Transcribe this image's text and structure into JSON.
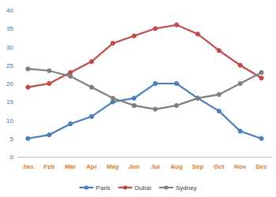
{
  "chart_data": {
    "type": "line",
    "categories": [
      "Jan",
      "Feb",
      "Mar",
      "Apr",
      "May",
      "Jun",
      "Jul",
      "Aug",
      "Sep",
      "Oct",
      "Nov",
      "Dec"
    ],
    "series": [
      {
        "name": "Paris",
        "color": "#4a7ebb",
        "marker": "circle",
        "values": [
          5,
          6,
          9,
          11,
          15,
          16,
          20,
          20,
          16,
          12.5,
          7,
          5
        ]
      },
      {
        "name": "Dubai",
        "color": "#be4b48",
        "marker": "circle",
        "values": [
          19,
          20,
          23,
          26,
          31,
          33,
          35,
          36,
          33.5,
          29,
          25,
          21.5
        ]
      },
      {
        "name": "Sydney",
        "color": "#7f7f7f",
        "marker": "circle",
        "values": [
          24,
          23.5,
          22,
          19,
          16,
          14,
          13,
          14,
          16,
          17,
          20,
          23
        ]
      }
    ],
    "ylim": [
      0,
      40
    ],
    "yticks": [
      0,
      5,
      10,
      15,
      20,
      25,
      30,
      35,
      40
    ],
    "grid": false,
    "legend": "bottom"
  }
}
